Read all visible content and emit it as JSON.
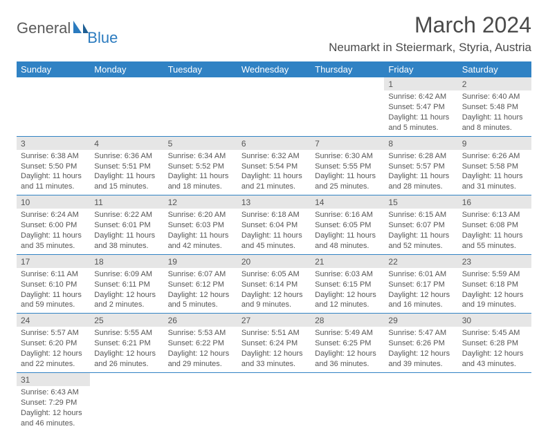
{
  "logo": {
    "general": "General",
    "blue": "Blue"
  },
  "title": "March 2024",
  "location": "Neumarkt in Steiermark, Styria, Austria",
  "colors": {
    "header_bg": "#3082c4",
    "header_text": "#ffffff",
    "daynum_bg": "#e6e6e6",
    "row_border": "#3082c4",
    "text": "#4a4a4a"
  },
  "weekdays": [
    "Sunday",
    "Monday",
    "Tuesday",
    "Wednesday",
    "Thursday",
    "Friday",
    "Saturday"
  ],
  "weeks": [
    [
      null,
      null,
      null,
      null,
      null,
      {
        "n": "1",
        "sr": "Sunrise: 6:42 AM",
        "ss": "Sunset: 5:47 PM",
        "dl1": "Daylight: 11 hours",
        "dl2": "and 5 minutes."
      },
      {
        "n": "2",
        "sr": "Sunrise: 6:40 AM",
        "ss": "Sunset: 5:48 PM",
        "dl1": "Daylight: 11 hours",
        "dl2": "and 8 minutes."
      }
    ],
    [
      {
        "n": "3",
        "sr": "Sunrise: 6:38 AM",
        "ss": "Sunset: 5:50 PM",
        "dl1": "Daylight: 11 hours",
        "dl2": "and 11 minutes."
      },
      {
        "n": "4",
        "sr": "Sunrise: 6:36 AM",
        "ss": "Sunset: 5:51 PM",
        "dl1": "Daylight: 11 hours",
        "dl2": "and 15 minutes."
      },
      {
        "n": "5",
        "sr": "Sunrise: 6:34 AM",
        "ss": "Sunset: 5:52 PM",
        "dl1": "Daylight: 11 hours",
        "dl2": "and 18 minutes."
      },
      {
        "n": "6",
        "sr": "Sunrise: 6:32 AM",
        "ss": "Sunset: 5:54 PM",
        "dl1": "Daylight: 11 hours",
        "dl2": "and 21 minutes."
      },
      {
        "n": "7",
        "sr": "Sunrise: 6:30 AM",
        "ss": "Sunset: 5:55 PM",
        "dl1": "Daylight: 11 hours",
        "dl2": "and 25 minutes."
      },
      {
        "n": "8",
        "sr": "Sunrise: 6:28 AM",
        "ss": "Sunset: 5:57 PM",
        "dl1": "Daylight: 11 hours",
        "dl2": "and 28 minutes."
      },
      {
        "n": "9",
        "sr": "Sunrise: 6:26 AM",
        "ss": "Sunset: 5:58 PM",
        "dl1": "Daylight: 11 hours",
        "dl2": "and 31 minutes."
      }
    ],
    [
      {
        "n": "10",
        "sr": "Sunrise: 6:24 AM",
        "ss": "Sunset: 6:00 PM",
        "dl1": "Daylight: 11 hours",
        "dl2": "and 35 minutes."
      },
      {
        "n": "11",
        "sr": "Sunrise: 6:22 AM",
        "ss": "Sunset: 6:01 PM",
        "dl1": "Daylight: 11 hours",
        "dl2": "and 38 minutes."
      },
      {
        "n": "12",
        "sr": "Sunrise: 6:20 AM",
        "ss": "Sunset: 6:03 PM",
        "dl1": "Daylight: 11 hours",
        "dl2": "and 42 minutes."
      },
      {
        "n": "13",
        "sr": "Sunrise: 6:18 AM",
        "ss": "Sunset: 6:04 PM",
        "dl1": "Daylight: 11 hours",
        "dl2": "and 45 minutes."
      },
      {
        "n": "14",
        "sr": "Sunrise: 6:16 AM",
        "ss": "Sunset: 6:05 PM",
        "dl1": "Daylight: 11 hours",
        "dl2": "and 48 minutes."
      },
      {
        "n": "15",
        "sr": "Sunrise: 6:15 AM",
        "ss": "Sunset: 6:07 PM",
        "dl1": "Daylight: 11 hours",
        "dl2": "and 52 minutes."
      },
      {
        "n": "16",
        "sr": "Sunrise: 6:13 AM",
        "ss": "Sunset: 6:08 PM",
        "dl1": "Daylight: 11 hours",
        "dl2": "and 55 minutes."
      }
    ],
    [
      {
        "n": "17",
        "sr": "Sunrise: 6:11 AM",
        "ss": "Sunset: 6:10 PM",
        "dl1": "Daylight: 11 hours",
        "dl2": "and 59 minutes."
      },
      {
        "n": "18",
        "sr": "Sunrise: 6:09 AM",
        "ss": "Sunset: 6:11 PM",
        "dl1": "Daylight: 12 hours",
        "dl2": "and 2 minutes."
      },
      {
        "n": "19",
        "sr": "Sunrise: 6:07 AM",
        "ss": "Sunset: 6:12 PM",
        "dl1": "Daylight: 12 hours",
        "dl2": "and 5 minutes."
      },
      {
        "n": "20",
        "sr": "Sunrise: 6:05 AM",
        "ss": "Sunset: 6:14 PM",
        "dl1": "Daylight: 12 hours",
        "dl2": "and 9 minutes."
      },
      {
        "n": "21",
        "sr": "Sunrise: 6:03 AM",
        "ss": "Sunset: 6:15 PM",
        "dl1": "Daylight: 12 hours",
        "dl2": "and 12 minutes."
      },
      {
        "n": "22",
        "sr": "Sunrise: 6:01 AM",
        "ss": "Sunset: 6:17 PM",
        "dl1": "Daylight: 12 hours",
        "dl2": "and 16 minutes."
      },
      {
        "n": "23",
        "sr": "Sunrise: 5:59 AM",
        "ss": "Sunset: 6:18 PM",
        "dl1": "Daylight: 12 hours",
        "dl2": "and 19 minutes."
      }
    ],
    [
      {
        "n": "24",
        "sr": "Sunrise: 5:57 AM",
        "ss": "Sunset: 6:20 PM",
        "dl1": "Daylight: 12 hours",
        "dl2": "and 22 minutes."
      },
      {
        "n": "25",
        "sr": "Sunrise: 5:55 AM",
        "ss": "Sunset: 6:21 PM",
        "dl1": "Daylight: 12 hours",
        "dl2": "and 26 minutes."
      },
      {
        "n": "26",
        "sr": "Sunrise: 5:53 AM",
        "ss": "Sunset: 6:22 PM",
        "dl1": "Daylight: 12 hours",
        "dl2": "and 29 minutes."
      },
      {
        "n": "27",
        "sr": "Sunrise: 5:51 AM",
        "ss": "Sunset: 6:24 PM",
        "dl1": "Daylight: 12 hours",
        "dl2": "and 33 minutes."
      },
      {
        "n": "28",
        "sr": "Sunrise: 5:49 AM",
        "ss": "Sunset: 6:25 PM",
        "dl1": "Daylight: 12 hours",
        "dl2": "and 36 minutes."
      },
      {
        "n": "29",
        "sr": "Sunrise: 5:47 AM",
        "ss": "Sunset: 6:26 PM",
        "dl1": "Daylight: 12 hours",
        "dl2": "and 39 minutes."
      },
      {
        "n": "30",
        "sr": "Sunrise: 5:45 AM",
        "ss": "Sunset: 6:28 PM",
        "dl1": "Daylight: 12 hours",
        "dl2": "and 43 minutes."
      }
    ],
    [
      {
        "n": "31",
        "sr": "Sunrise: 6:43 AM",
        "ss": "Sunset: 7:29 PM",
        "dl1": "Daylight: 12 hours",
        "dl2": "and 46 minutes."
      },
      null,
      null,
      null,
      null,
      null,
      null
    ]
  ]
}
